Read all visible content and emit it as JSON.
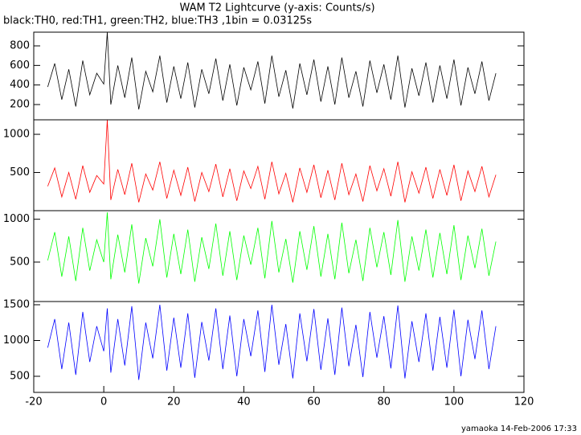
{
  "chart_data": [
    {
      "type": "line",
      "title": "WAM T2 Lightcurve (y-axis: Counts/s)",
      "subtitle": "black:TH0, red:TH1, green:TH2, blue:TH3 ,1bin = 0.03125s",
      "x": [
        -16,
        -14,
        -12,
        -10,
        -8,
        -6,
        -4,
        -2,
        0,
        1,
        2,
        4,
        6,
        8,
        10,
        12,
        14,
        16,
        18,
        20,
        22,
        24,
        26,
        28,
        30,
        32,
        34,
        36,
        38,
        40,
        42,
        44,
        46,
        48,
        50,
        52,
        54,
        56,
        58,
        60,
        62,
        64,
        66,
        68,
        70,
        72,
        74,
        76,
        78,
        80,
        82,
        84,
        86,
        88,
        90,
        92,
        94,
        96,
        98,
        100,
        102,
        104,
        106,
        108,
        110,
        112
      ],
      "xlim": [
        -20,
        120
      ],
      "ylim": [
        44,
        940
      ],
      "yticks": [
        200,
        400,
        600,
        800
      ],
      "series": [
        {
          "name": "TH0",
          "color": "#000000",
          "values": [
            380,
            620,
            250,
            560,
            180,
            650,
            300,
            520,
            410,
            940,
            200,
            600,
            270,
            680,
            150,
            540,
            330,
            700,
            220,
            590,
            260,
            630,
            170,
            560,
            310,
            670,
            240,
            610,
            190,
            580,
            350,
            640,
            210,
            700,
            280,
            550,
            160,
            620,
            300,
            660,
            230,
            590,
            200,
            680,
            270,
            540,
            180,
            650,
            320,
            610,
            250,
            700,
            170,
            570,
            290,
            630,
            220,
            600,
            260,
            660,
            190,
            580,
            310,
            640,
            240,
            520
          ]
        }
      ]
    },
    {
      "type": "line",
      "x": [
        -16,
        -14,
        -12,
        -10,
        -8,
        -6,
        -4,
        -2,
        0,
        1,
        2,
        4,
        6,
        8,
        10,
        12,
        14,
        16,
        18,
        20,
        22,
        24,
        26,
        28,
        30,
        32,
        34,
        36,
        38,
        40,
        42,
        44,
        46,
        48,
        50,
        52,
        54,
        56,
        58,
        60,
        62,
        64,
        66,
        68,
        70,
        72,
        74,
        76,
        78,
        80,
        82,
        84,
        86,
        88,
        90,
        92,
        94,
        96,
        98,
        100,
        102,
        104,
        106,
        108,
        110,
        112
      ],
      "xlim": [
        -20,
        120
      ],
      "ylim": [
        0,
        1190
      ],
      "yticks": [
        500,
        1000
      ],
      "series": [
        {
          "name": "TH1",
          "color": "#ff0000",
          "values": [
            320,
            560,
            180,
            500,
            150,
            590,
            240,
            460,
            350,
            1190,
            140,
            540,
            210,
            620,
            110,
            480,
            270,
            640,
            160,
            530,
            200,
            570,
            120,
            500,
            250,
            610,
            180,
            550,
            130,
            520,
            290,
            580,
            150,
            640,
            220,
            490,
            110,
            560,
            240,
            600,
            170,
            530,
            140,
            620,
            210,
            480,
            120,
            590,
            260,
            550,
            190,
            640,
            110,
            510,
            230,
            570,
            160,
            540,
            200,
            600,
            130,
            520,
            250,
            580,
            180,
            470
          ]
        }
      ]
    },
    {
      "type": "line",
      "x": [
        -16,
        -14,
        -12,
        -10,
        -8,
        -6,
        -4,
        -2,
        0,
        1,
        2,
        4,
        6,
        8,
        10,
        12,
        14,
        16,
        18,
        20,
        22,
        24,
        26,
        28,
        30,
        32,
        34,
        36,
        38,
        40,
        42,
        44,
        46,
        48,
        50,
        52,
        54,
        56,
        58,
        60,
        62,
        64,
        66,
        68,
        70,
        72,
        74,
        76,
        78,
        80,
        82,
        84,
        86,
        88,
        90,
        92,
        94,
        96,
        98,
        100,
        102,
        104,
        106,
        108,
        110,
        112
      ],
      "xlim": [
        -20,
        120
      ],
      "ylim": [
        40,
        1100
      ],
      "yticks": [
        500,
        1000
      ],
      "series": [
        {
          "name": "TH2",
          "color": "#00ff00",
          "values": [
            520,
            850,
            330,
            800,
            280,
            900,
            400,
            760,
            500,
            1080,
            300,
            820,
            380,
            940,
            250,
            780,
            450,
            1000,
            320,
            830,
            360,
            880,
            270,
            790,
            420,
            950,
            340,
            860,
            290,
            810,
            470,
            900,
            310,
            980,
            380,
            770,
            260,
            860,
            410,
            920,
            330,
            830,
            300,
            960,
            370,
            760,
            280,
            900,
            440,
            850,
            350,
            990,
            270,
            800,
            400,
            880,
            320,
            840,
            360,
            930,
            290,
            810,
            430,
            890,
            340,
            740
          ]
        }
      ]
    },
    {
      "type": "line",
      "x": [
        -16,
        -14,
        -12,
        -10,
        -8,
        -6,
        -4,
        -2,
        0,
        1,
        2,
        4,
        6,
        8,
        10,
        12,
        14,
        16,
        18,
        20,
        22,
        24,
        26,
        28,
        30,
        32,
        34,
        36,
        38,
        40,
        42,
        44,
        46,
        48,
        50,
        52,
        54,
        56,
        58,
        60,
        62,
        64,
        66,
        68,
        70,
        72,
        74,
        76,
        78,
        80,
        82,
        84,
        86,
        88,
        90,
        92,
        94,
        96,
        98,
        100,
        102,
        104,
        106,
        108,
        110,
        112
      ],
      "xlim": [
        -20,
        120
      ],
      "xticks": [
        -20,
        0,
        20,
        40,
        60,
        80,
        100,
        120
      ],
      "ylim": [
        275,
        1545
      ],
      "yticks": [
        500,
        1000,
        1500
      ],
      "series": [
        {
          "name": "TH3",
          "color": "#0000ff",
          "values": [
            900,
            1300,
            600,
            1250,
            520,
            1400,
            700,
            1200,
            850,
            1450,
            550,
            1300,
            650,
            1480,
            450,
            1250,
            750,
            1500,
            580,
            1320,
            620,
            1380,
            480,
            1260,
            720,
            1450,
            600,
            1350,
            500,
            1300,
            780,
            1420,
            560,
            1500,
            660,
            1230,
            470,
            1380,
            710,
            1440,
            590,
            1310,
            520,
            1460,
            640,
            1220,
            490,
            1400,
            760,
            1340,
            610,
            1490,
            470,
            1270,
            700,
            1380,
            580,
            1330,
            620,
            1430,
            500,
            1290,
            740,
            1420,
            600,
            1200
          ]
        }
      ]
    }
  ],
  "footer": "yamaoka 14-Feb-2006 17:33"
}
